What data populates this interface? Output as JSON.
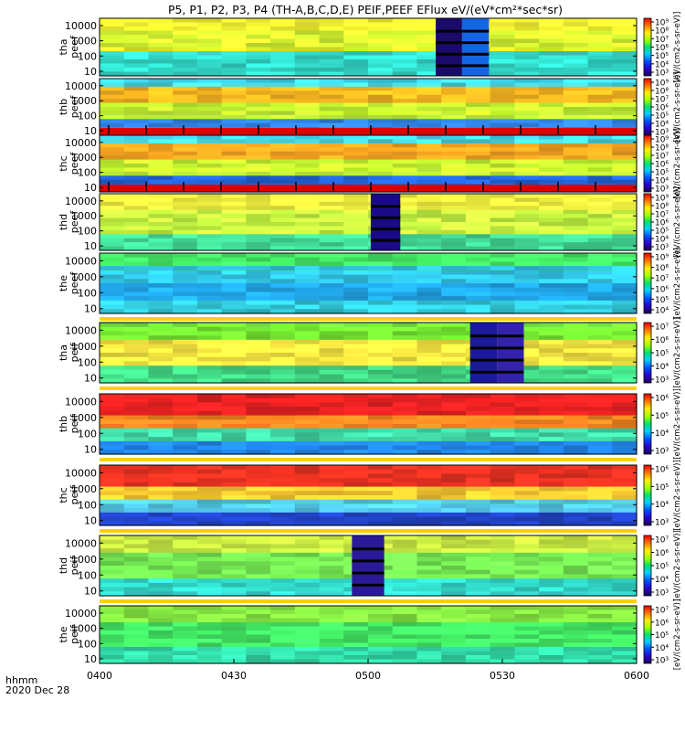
{
  "figure": {
    "title": "P5, P1, P2, P3, P4 (TH-A,B,C,D,E) PEIF,PEEF EFlux eV/(eV*cm²*sec*sr)",
    "x_axis_label": "hhmm",
    "date_label": "2020 Dec 28"
  },
  "chart_data": {
    "type": "heatmap",
    "title": "P5, P1, P2, P3, P4 (TH-A,B,C,D,E) PEIF,PEEF EFlux eV/(eV*cm²*sec*sr)",
    "x_ticks": [
      "0400",
      "0430",
      "0500",
      "0530",
      "0600"
    ],
    "x_range": [
      "04:00",
      "06:00"
    ],
    "y_scale": "log",
    "y_ticks": [
      "10",
      "100",
      "1000",
      "10000"
    ],
    "y_range": [
      5,
      30000
    ],
    "colorbar_unit": "[eV/(cm2-s-sr-eV)]",
    "panels": [
      {
        "label": [
          "tha",
          "peef"
        ],
        "cb_ticks": [
          "10³",
          "10⁴",
          "10⁵",
          "10⁶",
          "10⁷",
          "10⁸",
          "10⁹"
        ],
        "anomalies": [
          [
            0.626,
            0.675,
            "#1a0a6a"
          ],
          [
            0.675,
            0.725,
            "#1266e6"
          ]
        ],
        "band": [
          [
            0,
            0.2,
            "#ffff33"
          ],
          [
            0.2,
            0.6,
            "#ddff33"
          ],
          [
            0.6,
            1,
            "#33ddcc"
          ]
        ]
      },
      {
        "label": [
          "thb",
          "peef"
        ],
        "cb_ticks": [
          "10³",
          "10⁴",
          "10⁵",
          "10⁶",
          "10⁷",
          "10⁸",
          "10⁹"
        ],
        "red_bottom": true,
        "band": [
          [
            0,
            0.15,
            "#44ddee"
          ],
          [
            0.15,
            0.4,
            "#ffbb22"
          ],
          [
            0.4,
            0.7,
            "#ccff33"
          ],
          [
            0.7,
            1,
            "#3388ee"
          ]
        ]
      },
      {
        "label": [
          "thc",
          "peef"
        ],
        "cb_ticks": [
          "10³",
          "10⁴",
          "10⁵",
          "10⁶",
          "10⁷",
          "10⁸",
          "10⁹"
        ],
        "red_bottom": true,
        "band": [
          [
            0,
            0.15,
            "#44ddee"
          ],
          [
            0.15,
            0.45,
            "#ffaa22"
          ],
          [
            0.45,
            0.75,
            "#ccff33"
          ],
          [
            0.75,
            1,
            "#2266dd"
          ]
        ]
      },
      {
        "label": [
          "thd",
          "peef"
        ],
        "cb_ticks": [
          "10³",
          "10⁴",
          "10⁵",
          "10⁶",
          "10⁷",
          "10⁸",
          "10⁹"
        ],
        "anomalies": [
          [
            0.505,
            0.56,
            "#1a0a8a"
          ]
        ],
        "band": [
          [
            0,
            0.3,
            "#ffff44"
          ],
          [
            0.3,
            0.7,
            "#ccff44"
          ],
          [
            0.7,
            1,
            "#44dd99"
          ]
        ]
      },
      {
        "label": [
          "the",
          "peef"
        ],
        "cb_ticks": [
          "10⁴",
          "10⁵",
          "10⁶",
          "10⁷",
          "10⁸",
          "10⁹"
        ],
        "band": [
          [
            0,
            0.2,
            "#44ee66"
          ],
          [
            0.2,
            0.5,
            "#33ccee"
          ],
          [
            0.5,
            0.8,
            "#22aaee"
          ],
          [
            0.8,
            1,
            "#33ccdd"
          ]
        ]
      },
      {
        "label": [
          "tha",
          "peif"
        ],
        "cb_ticks": [
          "10³",
          "10⁴",
          "10⁵",
          "10⁶",
          "10⁷"
        ],
        "anomalies": [
          [
            0.69,
            0.74,
            "#1a1a9a"
          ],
          [
            0.74,
            0.79,
            "#3322aa"
          ]
        ],
        "band": [
          [
            0,
            0.3,
            "#77ee33"
          ],
          [
            0.3,
            0.7,
            "#ffee44"
          ],
          [
            0.7,
            1,
            "#44dd88"
          ]
        ]
      },
      {
        "label": [
          "thb",
          "peif"
        ],
        "cb_ticks": [
          "10³",
          "10⁴",
          "10⁵",
          "10⁶"
        ],
        "band": [
          [
            0,
            0.35,
            "#ee2222"
          ],
          [
            0.35,
            0.6,
            "#ff8822"
          ],
          [
            0.6,
            0.8,
            "#44ddaa"
          ],
          [
            0.8,
            1,
            "#2288ee"
          ]
        ]
      },
      {
        "label": [
          "thc",
          "peif"
        ],
        "cb_ticks": [
          "10³",
          "10⁴",
          "10⁵",
          "10⁶"
        ],
        "band": [
          [
            0,
            0.35,
            "#ee3322"
          ],
          [
            0.35,
            0.6,
            "#ffcc33"
          ],
          [
            0.6,
            0.8,
            "#55ccee"
          ],
          [
            0.8,
            1,
            "#2244cc"
          ]
        ]
      },
      {
        "label": [
          "thd",
          "peif"
        ],
        "cb_ticks": [
          "10³",
          "10⁴",
          "10⁵",
          "10⁶",
          "10⁷"
        ],
        "anomalies": [
          [
            0.47,
            0.53,
            "#2a1a9a"
          ]
        ],
        "band": [
          [
            0,
            0.3,
            "#ccee44"
          ],
          [
            0.3,
            0.7,
            "#77ee55"
          ],
          [
            0.7,
            1,
            "#33ddcc"
          ]
        ]
      },
      {
        "label": [
          "the",
          "peif"
        ],
        "cb_ticks": [
          "10³",
          "10⁴",
          "10⁵",
          "10⁶",
          "10⁷"
        ],
        "band": [
          [
            0,
            0.3,
            "#88ee44"
          ],
          [
            0.3,
            0.7,
            "#44ee66"
          ],
          [
            0.7,
            1,
            "#33ddaa"
          ]
        ]
      }
    ]
  }
}
